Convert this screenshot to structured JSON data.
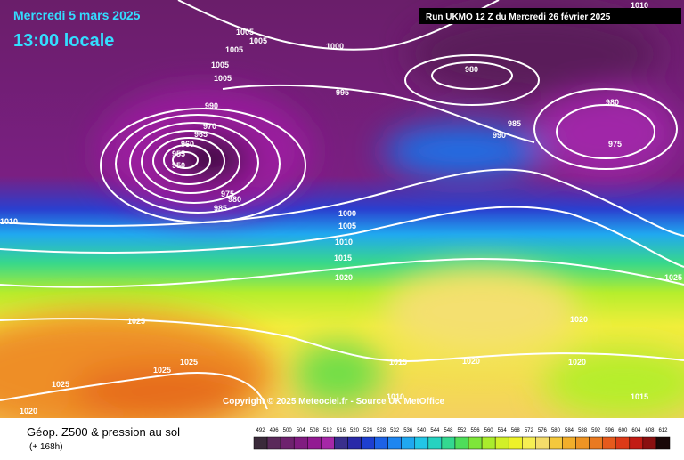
{
  "header": {
    "date": "Mercredi 5 mars 2025",
    "time": "13:00 locale",
    "run": "Run UKMO 12 Z du Mercredi 26 février 2025"
  },
  "copyright": "Copyright © 2025 Meteociel.fr - Source UK MetOffice",
  "legend": {
    "title": "Géop. Z500 & pression au sol",
    "subtitle": "(+ 168h)",
    "values": [
      492,
      496,
      500,
      504,
      508,
      512,
      516,
      520,
      524,
      528,
      532,
      536,
      540,
      544,
      548,
      552,
      556,
      560,
      564,
      568,
      572,
      576,
      580,
      584,
      588,
      592,
      596,
      600,
      604,
      608,
      612
    ],
    "colors": [
      "#3a2a3a",
      "#5a2a5a",
      "#6e226e",
      "#801c80",
      "#921a92",
      "#a628a8",
      "#3a2f8c",
      "#2a2aa8",
      "#1e3fd0",
      "#1d62e6",
      "#1e86f0",
      "#20a8f0",
      "#22c6e6",
      "#26d2c0",
      "#34d890",
      "#4ede5a",
      "#7ee63a",
      "#aaec2c",
      "#d2f028",
      "#eef22a",
      "#f6ee52",
      "#f4dc6a",
      "#f4c83c",
      "#f2ae2a",
      "#ee9424",
      "#ea7a20",
      "#e65a1c",
      "#dc3a18",
      "#c21c14",
      "#8a1010",
      "#1a0808"
    ]
  },
  "isobar_labels": [
    1005,
    1005,
    1005,
    1005,
    1005,
    1000,
    980,
    995,
    990,
    985,
    990,
    980,
    975,
    970,
    965,
    960,
    955,
    950,
    975,
    980,
    985,
    1010,
    1000,
    1005,
    1010,
    1015,
    1020,
    1025,
    1020,
    1025,
    1025,
    1025,
    1015,
    1020,
    1020,
    1025,
    1010,
    1015,
    1020,
    1010
  ]
}
